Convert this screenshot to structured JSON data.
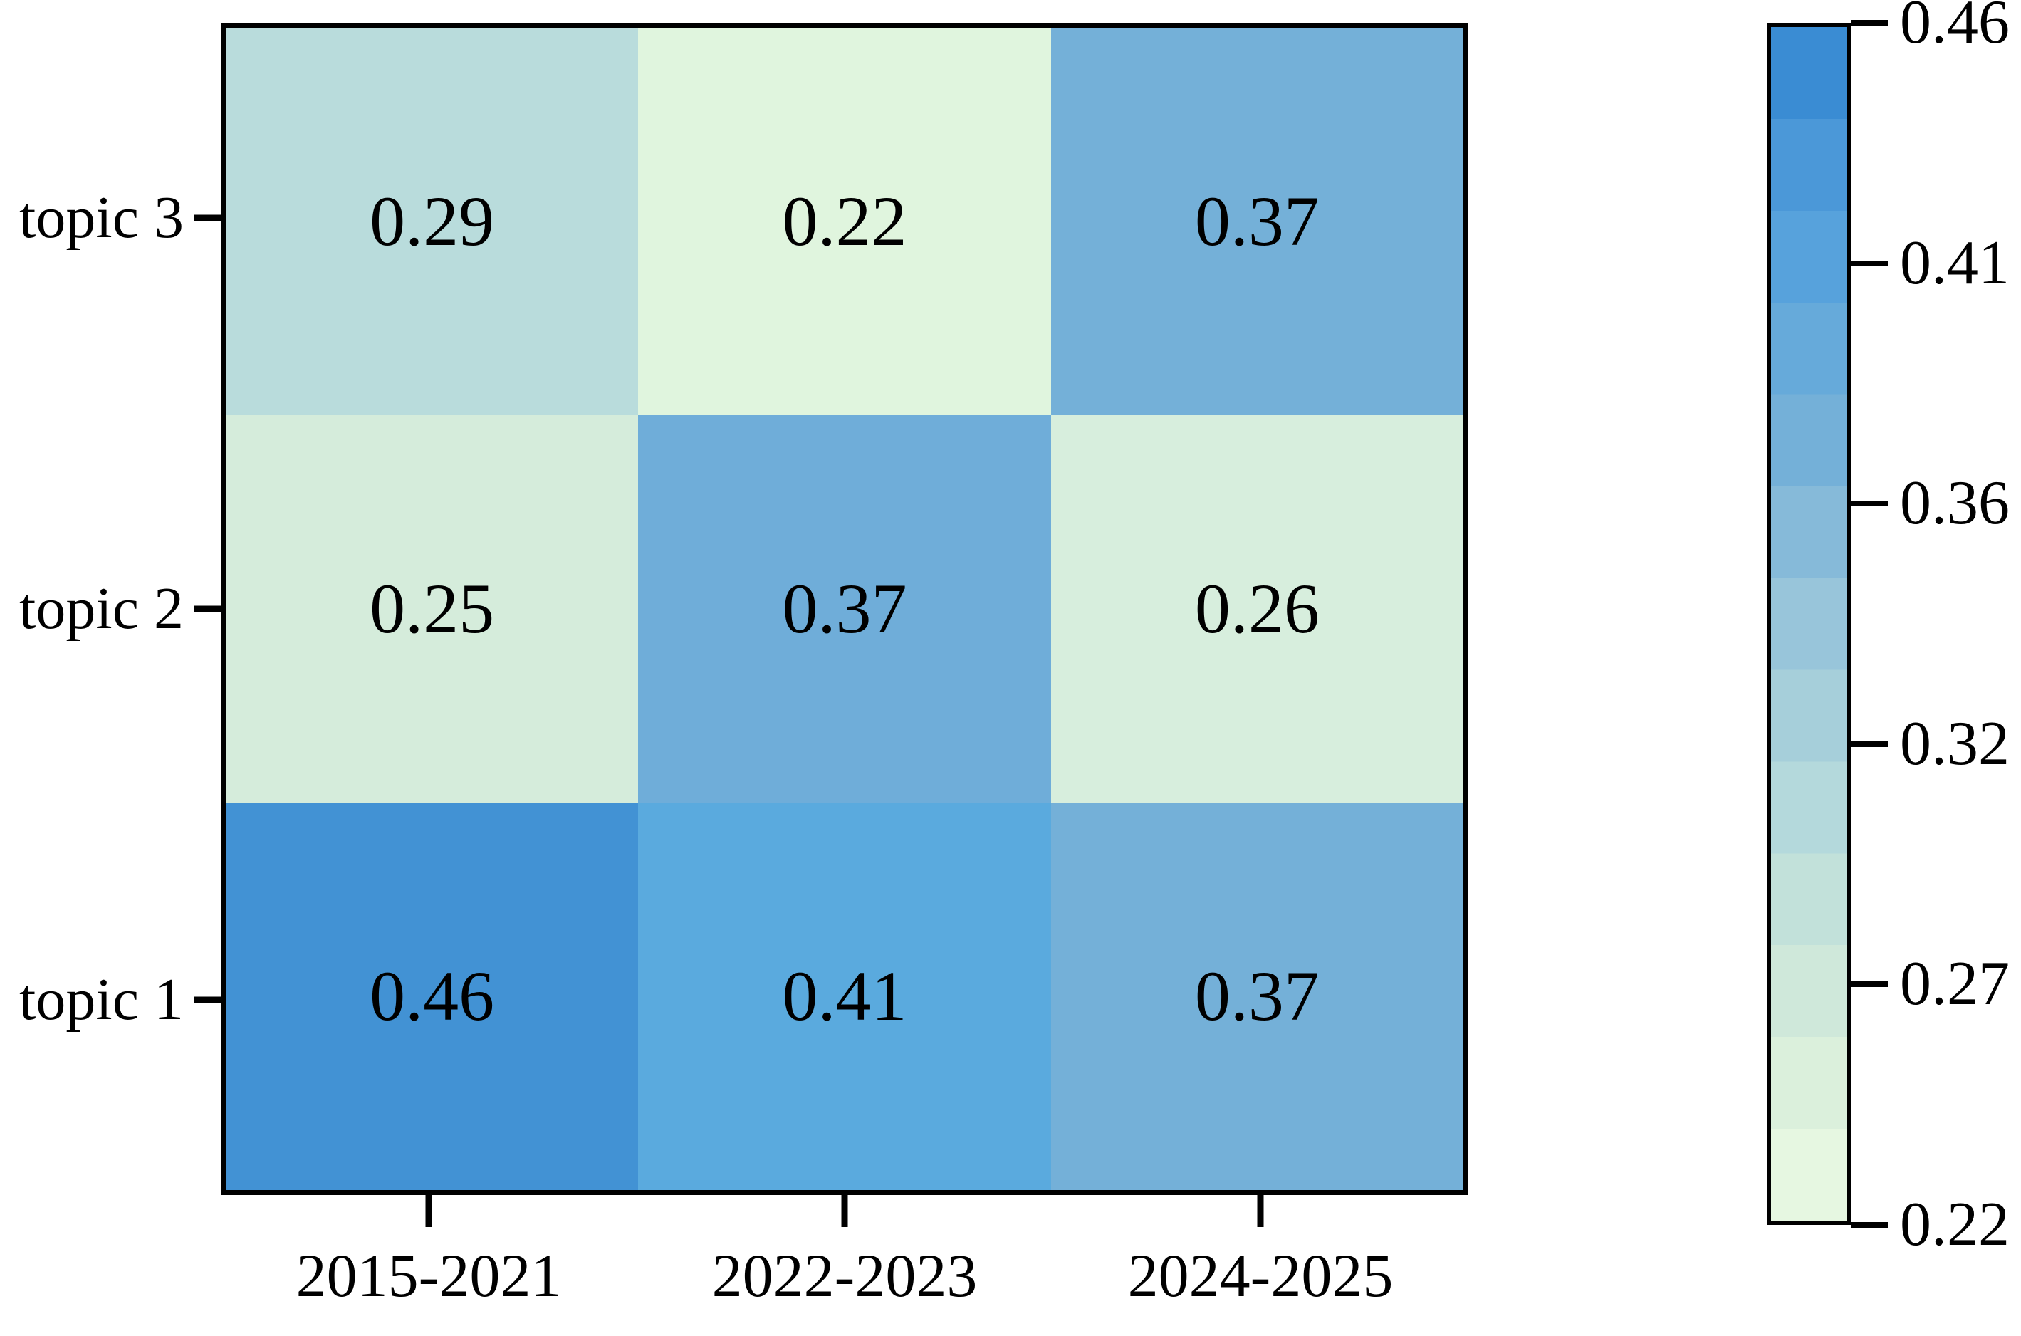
{
  "chart_data": {
    "type": "heatmap",
    "title": "",
    "xlabel": "",
    "ylabel": "",
    "x_categories": [
      "2015-2021",
      "2022-2023",
      "2024-2025"
    ],
    "y_categories_top_to_bottom": [
      "topic 3",
      "topic 2",
      "topic 1"
    ],
    "values_top_to_bottom": [
      [
        0.29,
        0.22,
        0.37
      ],
      [
        0.25,
        0.37,
        0.26
      ],
      [
        0.46,
        0.41,
        0.37
      ]
    ],
    "value_labels": [
      [
        "0.29",
        "0.22",
        "0.37"
      ],
      [
        "0.25",
        "0.37",
        "0.26"
      ],
      [
        "0.46",
        "0.41",
        "0.37"
      ]
    ],
    "cell_colors": [
      [
        "#b9dcdc",
        "#e0f5de",
        "#74b0d8"
      ],
      [
        "#d5ecdb",
        "#6fadd9",
        "#d7eedd"
      ],
      [
        "#4292d4",
        "#5aaade",
        "#74b0d8"
      ]
    ],
    "grid": false,
    "legend_position": "none",
    "colorbar": {
      "min": 0.22,
      "max": 0.46,
      "tick_labels": [
        "0.46",
        "0.41",
        "0.36",
        "0.32",
        "0.27",
        "0.22"
      ],
      "gradient_top_to_bottom": [
        "#3a8cd3",
        "#4b98d8",
        "#57a2dc",
        "#66aada",
        "#74b0d8",
        "#86bad9",
        "#98c5da",
        "#a6cfda",
        "#b4d9dc",
        "#c2e1da",
        "#cfe8da",
        "#dbf0dc",
        "#e6f7e1"
      ]
    },
    "text_color": "#000000",
    "border_color": "#000000",
    "background_color": "#ffffff"
  }
}
